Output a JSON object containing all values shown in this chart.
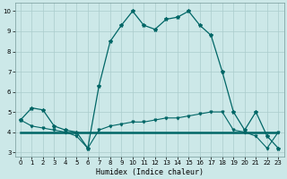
{
  "xlabel": "Humidex (Indice chaleur)",
  "xlim": [
    -0.5,
    23.5
  ],
  "ylim": [
    2.8,
    10.4
  ],
  "yticks": [
    3,
    4,
    5,
    6,
    7,
    8,
    9,
    10
  ],
  "xticks": [
    0,
    1,
    2,
    3,
    4,
    5,
    6,
    7,
    8,
    9,
    10,
    11,
    12,
    13,
    14,
    15,
    16,
    17,
    18,
    19,
    20,
    21,
    22,
    23
  ],
  "bg_color": "#cce8e8",
  "grid_color": "#aacccc",
  "line_color": "#006666",
  "series_max": {
    "x": [
      0,
      1,
      2,
      3,
      4,
      5,
      6,
      7,
      8,
      9,
      10,
      11,
      12,
      13,
      14,
      15,
      16,
      17,
      18,
      19,
      20,
      21,
      22,
      23
    ],
    "y": [
      4.6,
      5.2,
      5.1,
      4.3,
      4.1,
      4.0,
      3.2,
      6.3,
      8.5,
      9.3,
      10.0,
      9.3,
      9.1,
      9.6,
      9.7,
      10.0,
      9.3,
      8.8,
      7.0,
      5.0,
      4.1,
      5.0,
      3.8,
      3.2
    ]
  },
  "series_flat": {
    "x": [
      0,
      1,
      2,
      3,
      4,
      5,
      6,
      7,
      8,
      9,
      10,
      11,
      12,
      13,
      14,
      15,
      16,
      17,
      18,
      19,
      20,
      21,
      22,
      23
    ],
    "y": [
      4.0,
      4.0,
      4.0,
      4.0,
      4.0,
      4.0,
      4.0,
      4.0,
      4.0,
      4.0,
      4.0,
      4.0,
      4.0,
      4.0,
      4.0,
      4.0,
      4.0,
      4.0,
      4.0,
      4.0,
      4.0,
      4.0,
      4.0,
      4.0
    ]
  },
  "series_min": {
    "x": [
      0,
      1,
      2,
      3,
      4,
      5,
      6,
      7,
      8,
      9,
      10,
      11,
      12,
      13,
      14,
      15,
      16,
      17,
      18,
      19,
      20,
      21,
      22,
      23
    ],
    "y": [
      4.6,
      4.3,
      4.2,
      4.1,
      4.0,
      3.8,
      3.2,
      4.1,
      4.3,
      4.4,
      4.5,
      4.5,
      4.6,
      4.7,
      4.7,
      4.8,
      4.9,
      5.0,
      5.0,
      4.1,
      4.0,
      3.8,
      3.2,
      4.0
    ]
  }
}
